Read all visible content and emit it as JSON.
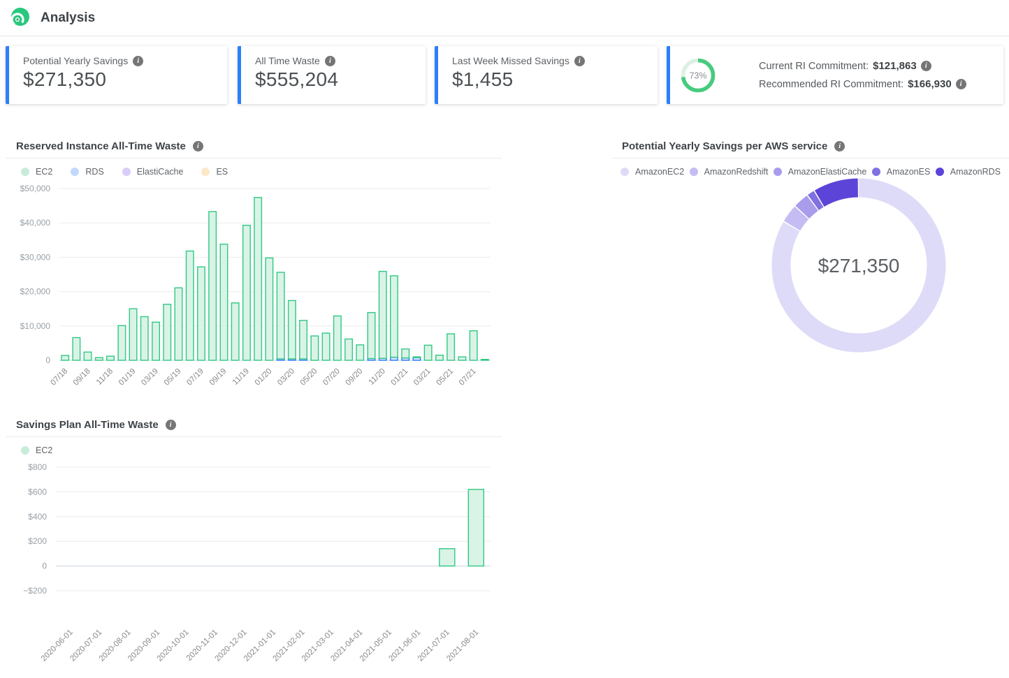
{
  "header": {
    "title": "Analysis"
  },
  "cards": [
    {
      "label": "Potential Yearly Savings",
      "value": "$271,350"
    },
    {
      "label": "All Time Waste",
      "value": "$555,204"
    },
    {
      "label": "Last Week Missed Savings",
      "value": "$1,455"
    }
  ],
  "commitment_card": {
    "percent": 73,
    "percent_label": "73%",
    "rows": [
      {
        "label": "Current RI Commitment:",
        "value": "$121,863"
      },
      {
        "label": "Recommended RI Commitment:",
        "value": "$166,930"
      }
    ]
  },
  "colors": {
    "accent_blue": "#2d7ff9",
    "ring_green": "#45cb7e",
    "ring_track": "#ddf1e2",
    "grid": "#ececec",
    "axis": "#c9d2e0",
    "tick_text": "#98a0a6",
    "xlabel_text": "#85898d"
  },
  "chart_data": [
    {
      "id": "ri_waste",
      "type": "bar",
      "stacked": true,
      "title": "Reserved Instance All-Time Waste",
      "ylim": [
        0,
        50000
      ],
      "yticks": {
        "values": [
          0,
          10000,
          20000,
          30000,
          40000,
          50000
        ],
        "labels": [
          "0",
          "$10,000",
          "$20,000",
          "$30,000",
          "$40,000",
          "$50,000"
        ]
      },
      "categories": [
        "07/18",
        "08/18",
        "09/18",
        "10/18",
        "11/18",
        "12/18",
        "01/19",
        "02/19",
        "03/19",
        "04/19",
        "05/19",
        "06/19",
        "07/19",
        "08/19",
        "09/19",
        "10/19",
        "11/19",
        "12/19",
        "01/20",
        "02/20",
        "03/20",
        "04/20",
        "05/20",
        "06/20",
        "07/20",
        "08/20",
        "09/20",
        "10/20",
        "11/20",
        "12/20",
        "01/21",
        "02/21",
        "03/21",
        "04/21",
        "05/21",
        "06/21",
        "07/21",
        "08/21"
      ],
      "x_tick_labels_shown": [
        "07/18",
        "09/18",
        "11/18",
        "01/19",
        "03/19",
        "05/19",
        "07/19",
        "09/19",
        "11/19",
        "01/20",
        "03/20",
        "05/20",
        "07/20",
        "09/20",
        "11/20",
        "01/21",
        "03/21",
        "05/21",
        "07/21"
      ],
      "series": [
        {
          "name": "EC2",
          "color": "#2fc982",
          "fill": "#daf3e7",
          "dot": "#c8ecd9",
          "values": [
            1400,
            6600,
            2400,
            800,
            1200,
            10100,
            15000,
            12700,
            11100,
            16300,
            21100,
            31800,
            27200,
            43300,
            33800,
            16700,
            39300,
            47400,
            29800,
            25200,
            17000,
            11200,
            7100,
            7900,
            12900,
            6200,
            4500,
            13400,
            25300,
            23700,
            2600,
            200,
            4400,
            1500,
            7700,
            1000,
            8600,
            270
          ]
        },
        {
          "name": "RDS",
          "color": "#2979f7",
          "fill": "#d7e6fd",
          "dot": "#c3d9fb",
          "values": [
            0,
            0,
            0,
            0,
            0,
            0,
            0,
            0,
            0,
            0,
            0,
            0,
            0,
            0,
            0,
            0,
            0,
            0,
            0,
            400,
            400,
            400,
            0,
            0,
            0,
            0,
            0,
            500,
            600,
            900,
            700,
            800,
            0,
            0,
            0,
            0,
            0,
            0
          ]
        },
        {
          "name": "ElastiCache",
          "color": "#8f7fe8",
          "fill": "#e6e0fb",
          "dot": "#d8cdf8",
          "values": [
            0,
            0,
            0,
            0,
            0,
            0,
            0,
            0,
            0,
            0,
            0,
            0,
            0,
            0,
            0,
            0,
            0,
            0,
            0,
            0,
            0,
            0,
            0,
            0,
            0,
            0,
            0,
            0,
            0,
            0,
            0,
            0,
            0,
            0,
            0,
            0,
            0,
            0
          ]
        },
        {
          "name": "ES",
          "color": "#f5b04c",
          "fill": "#fdeed3",
          "dot": "#fde7c8",
          "values": [
            0,
            0,
            0,
            0,
            0,
            0,
            0,
            0,
            0,
            0,
            0,
            0,
            0,
            0,
            0,
            0,
            0,
            0,
            0,
            0,
            0,
            0,
            0,
            0,
            0,
            0,
            0,
            0,
            0,
            0,
            0,
            0,
            0,
            0,
            0,
            0,
            0,
            0
          ]
        }
      ]
    },
    {
      "id": "savings_per_service",
      "type": "pie",
      "title": "Potential Yearly Savings per AWS service",
      "center_label": "$271,350",
      "slices": [
        {
          "name": "AmazonEC2",
          "percent": 83.5,
          "color": "#dedbf8"
        },
        {
          "name": "AmazonRedshift",
          "percent": 3.5,
          "color": "#c4bcf2"
        },
        {
          "name": "AmazonElastiCache",
          "percent": 3.0,
          "color": "#a99cea"
        },
        {
          "name": "AmazonES",
          "percent": 1.5,
          "color": "#8071e0"
        },
        {
          "name": "AmazonRDS",
          "percent": 8.5,
          "color": "#5d44d8"
        }
      ]
    },
    {
      "id": "sp_waste",
      "type": "bar",
      "stacked": false,
      "title": "Savings Plan All-Time Waste",
      "ylim": [
        -200,
        800
      ],
      "yticks": {
        "values": [
          -200,
          0,
          200,
          400,
          600,
          800
        ],
        "labels": [
          "−$200",
          "0",
          "$200",
          "$400",
          "$600",
          "$800"
        ]
      },
      "categories": [
        "2020-06-01",
        "2020-07-01",
        "2020-08-01",
        "2020-09-01",
        "2020-10-01",
        "2020-11-01",
        "2020-12-01",
        "2021-01-01",
        "2021-02-01",
        "2021-03-01",
        "2021-04-01",
        "2021-05-01",
        "2021-06-01",
        "2021-07-01",
        "2021-08-01"
      ],
      "series": [
        {
          "name": "EC2",
          "color": "#2fc982",
          "fill": "#daf3e7",
          "dot": "#c8ecd9",
          "values": [
            0,
            0,
            0,
            0,
            0,
            0,
            0,
            0,
            0,
            0,
            0,
            0,
            0,
            140,
            620
          ]
        }
      ]
    }
  ]
}
